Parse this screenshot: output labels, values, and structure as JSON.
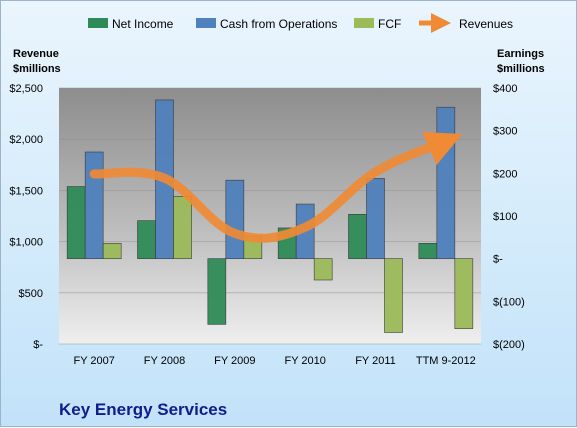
{
  "chart_data": {
    "type": "bar",
    "title": "Key Energy Services",
    "categories": [
      "FY 2007",
      "FY 2008",
      "FY 2009",
      "FY 2010",
      "FY 2011",
      "TTM 9-2012"
    ],
    "series": [
      {
        "name": "Net Income",
        "axis": "right",
        "type": "bar",
        "color": "#2e8b57",
        "values": [
          169,
          89,
          -154,
          72,
          104,
          36
        ]
      },
      {
        "name": "Cash from Operations",
        "axis": "right",
        "type": "bar",
        "color": "#4f81bd",
        "values": [
          250,
          372,
          184,
          128,
          188,
          355
        ]
      },
      {
        "name": "FCF",
        "axis": "right",
        "type": "bar",
        "color": "#9bbb59",
        "values": [
          36,
          146,
          52,
          -50,
          -173,
          -164
        ]
      },
      {
        "name": "Revenues",
        "axis": "left",
        "type": "line",
        "color": "#f08a34",
        "values": [
          1660,
          1620,
          1080,
          1140,
          1680,
          1980
        ]
      }
    ],
    "left_axis": {
      "label_line1": "Revenue",
      "label_line2": "$millions",
      "min": 0,
      "max": 2500,
      "ticks": [
        0,
        500,
        1000,
        1500,
        2000,
        2500
      ],
      "tick_labels": [
        "$-",
        "$500",
        "$1,000",
        "$1,500",
        "$2,000",
        "$2,500"
      ]
    },
    "right_axis": {
      "label_line1": "Earnings",
      "label_line2": "$millions",
      "min": -200,
      "max": 400,
      "ticks": [
        -200,
        -100,
        0,
        100,
        200,
        300,
        400
      ],
      "tick_labels": [
        "$(200)",
        "$(100)",
        "$-",
        "$100",
        "$200",
        "$300",
        "$400"
      ]
    },
    "legend_position": "top",
    "grid": true
  }
}
